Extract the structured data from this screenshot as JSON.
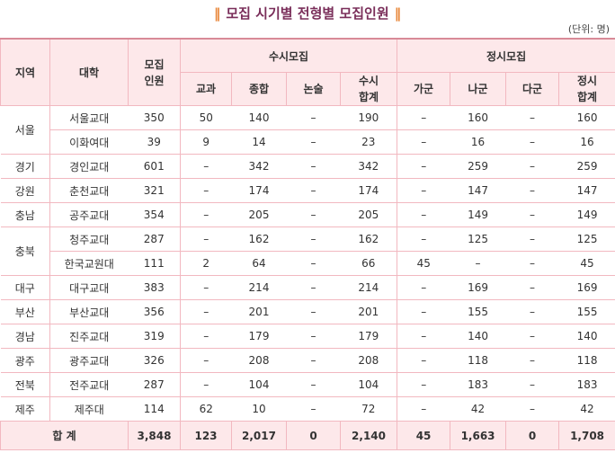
{
  "header": {
    "title": "모집 시기별 전형별 모집인원",
    "unit": "(단위: 명)"
  },
  "columns": {
    "region": "지역",
    "univ": "대학",
    "total": "모집 인원",
    "early": {
      "title": "수시모집",
      "cols": [
        "교과",
        "종합",
        "논술",
        "수시 합계"
      ]
    },
    "regular": {
      "title": "정시모집",
      "cols": [
        "가군",
        "나군",
        "다군",
        "정시 합계"
      ]
    }
  },
  "groups": [
    {
      "region": "서울",
      "rows": [
        [
          "서울교대",
          "350",
          "50",
          "140",
          "–",
          "190",
          "–",
          "160",
          "–",
          "160"
        ],
        [
          "이화여대",
          "39",
          "9",
          "14",
          "–",
          "23",
          "–",
          "16",
          "–",
          "16"
        ]
      ]
    },
    {
      "region": "경기",
      "rows": [
        [
          "경인교대",
          "601",
          "–",
          "342",
          "–",
          "342",
          "–",
          "259",
          "–",
          "259"
        ]
      ]
    },
    {
      "region": "강원",
      "rows": [
        [
          "춘천교대",
          "321",
          "–",
          "174",
          "–",
          "174",
          "–",
          "147",
          "–",
          "147"
        ]
      ]
    },
    {
      "region": "충남",
      "rows": [
        [
          "공주교대",
          "354",
          "–",
          "205",
          "–",
          "205",
          "–",
          "149",
          "–",
          "149"
        ]
      ]
    },
    {
      "region": "충북",
      "rows": [
        [
          "청주교대",
          "287",
          "–",
          "162",
          "–",
          "162",
          "–",
          "125",
          "–",
          "125"
        ],
        [
          "한국교원대",
          "111",
          "2",
          "64",
          "–",
          "66",
          "45",
          "–",
          "–",
          "45"
        ]
      ]
    },
    {
      "region": "대구",
      "rows": [
        [
          "대구교대",
          "383",
          "–",
          "214",
          "–",
          "214",
          "–",
          "169",
          "–",
          "169"
        ]
      ]
    },
    {
      "region": "부산",
      "rows": [
        [
          "부산교대",
          "356",
          "–",
          "201",
          "–",
          "201",
          "–",
          "155",
          "–",
          "155"
        ]
      ]
    },
    {
      "region": "경남",
      "rows": [
        [
          "진주교대",
          "319",
          "–",
          "179",
          "–",
          "179",
          "–",
          "140",
          "–",
          "140"
        ]
      ]
    },
    {
      "region": "광주",
      "rows": [
        [
          "광주교대",
          "326",
          "–",
          "208",
          "–",
          "208",
          "–",
          "118",
          "–",
          "118"
        ]
      ]
    },
    {
      "region": "전북",
      "rows": [
        [
          "전주교대",
          "287",
          "–",
          "104",
          "–",
          "104",
          "–",
          "183",
          "–",
          "183"
        ]
      ]
    },
    {
      "region": "제주",
      "rows": [
        [
          "제주대",
          "114",
          "62",
          "10",
          "–",
          "72",
          "–",
          "42",
          "–",
          "42"
        ]
      ]
    }
  ],
  "total": {
    "label": "합 계",
    "values": [
      "3,848",
      "123",
      "2,017",
      "0",
      "2,140",
      "45",
      "1,663",
      "0",
      "1,708"
    ]
  }
}
